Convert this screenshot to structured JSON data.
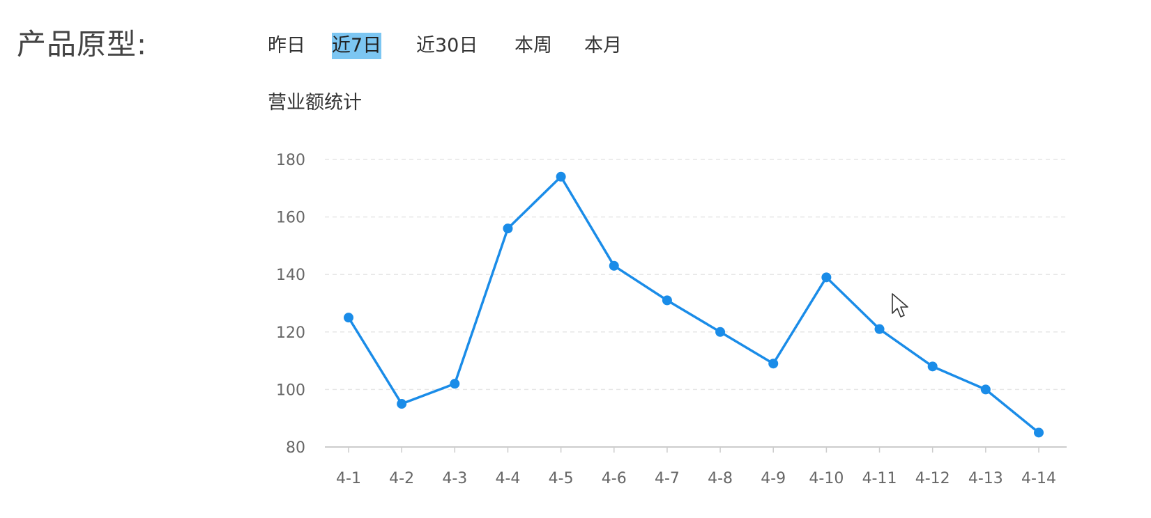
{
  "heading": "产品原型:",
  "range_tabs": [
    {
      "label": "昨日",
      "selected": false
    },
    {
      "label": "近7日",
      "selected": true
    },
    {
      "label": "近30日",
      "selected": false
    },
    {
      "label": "本周",
      "selected": false
    },
    {
      "label": "本月",
      "selected": false
    }
  ],
  "colors": {
    "line": "#1a8ce8",
    "selected_tab": "#7cc6f2",
    "grid": "#e6e6e6",
    "axis": "#cccccc",
    "tick_text": "#666666"
  },
  "chart_data": {
    "type": "line",
    "title": "营业额统计",
    "xlabel": "",
    "ylabel": "",
    "categories": [
      "4-1",
      "4-2",
      "4-3",
      "4-4",
      "4-5",
      "4-6",
      "4-7",
      "4-8",
      "4-9",
      "4-10",
      "4-11",
      "4-12",
      "4-13",
      "4-14"
    ],
    "series": [
      {
        "values": [
          125,
          95,
          102,
          156,
          174,
          143,
          131,
          120,
          109,
          139,
          121,
          108,
          100,
          85
        ]
      }
    ],
    "ylim": [
      80,
      180
    ],
    "yticks": [
      80,
      100,
      120,
      140,
      160,
      180
    ],
    "grid": "horizontal dashed",
    "legend": "none"
  }
}
